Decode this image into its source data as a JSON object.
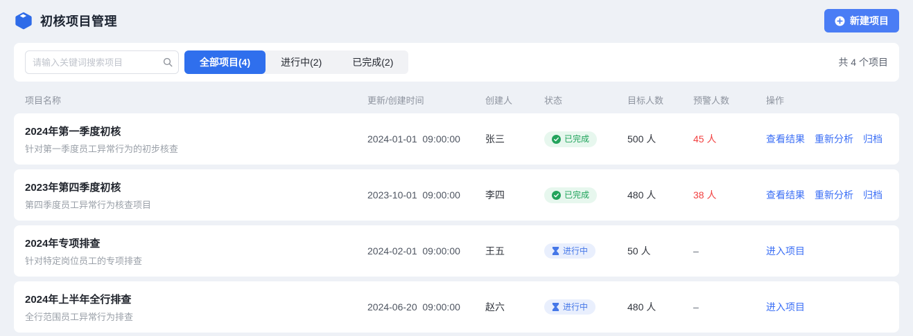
{
  "header": {
    "title": "初核项目管理",
    "new_project_label": "新建项目"
  },
  "toolbar": {
    "search_placeholder": "请输入关键词搜索项目",
    "tabs": [
      {
        "label": "全部项目(4)",
        "active": true
      },
      {
        "label": "进行中(2)",
        "active": false
      },
      {
        "label": "已完成(2)",
        "active": false
      }
    ],
    "total_text": "共 4 个项目"
  },
  "table": {
    "columns": [
      "项目名称",
      "更新/创建时间",
      "创建人",
      "状态",
      "目标人数",
      "预警人数",
      "操作"
    ],
    "rows": [
      {
        "name": "2024年第一季度初核",
        "description": "针对第一季度员工异常行为的初步核查",
        "time": "2024-01-01  09:00:00",
        "creator": "张三",
        "status": "已完成",
        "status_type": "done",
        "target": "500 人",
        "warning": "45 人",
        "warning_alert": true,
        "actions": [
          "查看结果",
          "重新分析",
          "归档"
        ]
      },
      {
        "name": "2023年第四季度初核",
        "description": "第四季度员工异常行为核查项目",
        "time": "2023-10-01  09:00:00",
        "creator": "李四",
        "status": "已完成",
        "status_type": "done",
        "target": "480 人",
        "warning": "38 人",
        "warning_alert": true,
        "actions": [
          "查看结果",
          "重新分析",
          "归档"
        ]
      },
      {
        "name": "2024年专项排查",
        "description": "针对特定岗位员工的专项排查",
        "time": "2024-02-01  09:00:00",
        "creator": "王五",
        "status": "进行中",
        "status_type": "progress",
        "target": "50 人",
        "warning": "–",
        "warning_alert": false,
        "actions": [
          "进入项目"
        ]
      },
      {
        "name": "2024年上半年全行排查",
        "description": "全行范围员工异常行为排查",
        "time": "2024-06-20  09:00:00",
        "creator": "赵六",
        "status": "进行中",
        "status_type": "progress",
        "target": "480 人",
        "warning": "–",
        "warning_alert": false,
        "actions": [
          "进入项目"
        ]
      }
    ]
  },
  "colors": {
    "page_bg": "#eef1f6",
    "primary_blue": "#2f6fed",
    "button_blue": "#4a7df5",
    "link_blue": "#3a6ef5",
    "done_green": "#1ea35a",
    "done_bg": "#e7f7ee",
    "progress_blue": "#4577e8",
    "progress_bg": "#e9effd",
    "warning_red": "#f23f3f"
  },
  "icons": {
    "logo": "cube-icon",
    "new_project": "plus-circle-icon",
    "search": "magnifier-icon",
    "done": "check-circle-icon",
    "progress": "hourglass-icon"
  }
}
